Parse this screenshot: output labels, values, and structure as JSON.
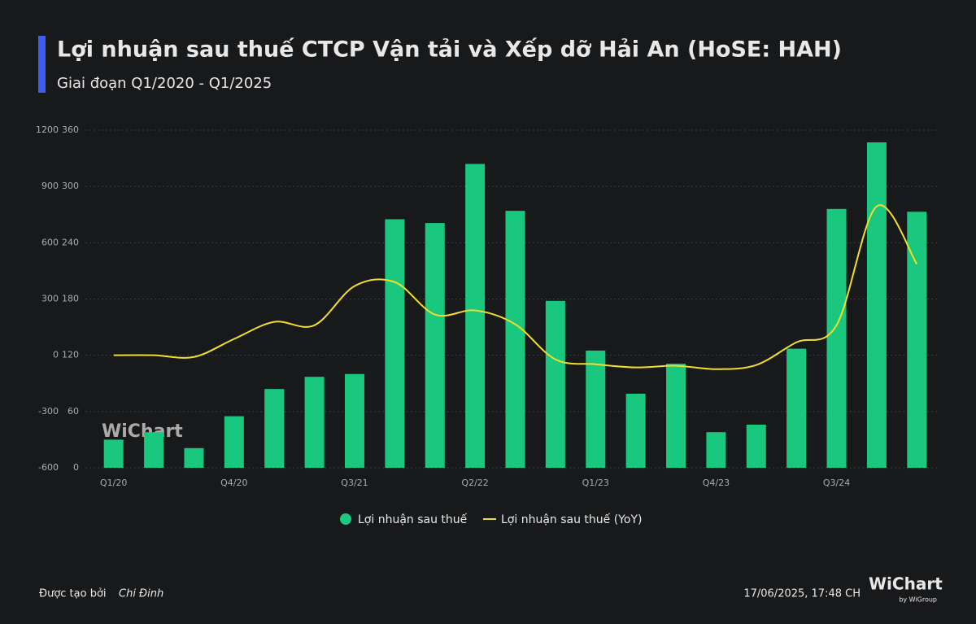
{
  "chart_data": {
    "type": "bar-line",
    "title": "Lợi nhuận sau thuế CTCP Vận tải và Xếp dỡ Hải An (HoSE: HAH)",
    "subtitle": "Giai đoạn Q1/2020 - Q1/2025",
    "watermark": "WiChart",
    "categories": [
      "Q1/20",
      null,
      null,
      "Q4/20",
      null,
      null,
      "Q3/21",
      null,
      null,
      "Q2/22",
      null,
      null,
      "Q1/23",
      null,
      null,
      "Q4/23",
      null,
      null,
      "Q3/24",
      null,
      null
    ],
    "series": [
      {
        "name": "Lợi nhuận sau thuế",
        "type": "bar",
        "color": "#19c77f",
        "axis": "y2",
        "values": [
          30,
          38,
          21,
          55,
          84,
          97,
          100,
          265,
          261,
          324,
          274,
          178,
          125,
          79,
          111,
          38,
          46,
          127,
          276,
          347,
          273
        ]
      },
      {
        "name": "Lợi nhuận sau thuế (YoY)",
        "type": "line",
        "color": "#f2de2a",
        "axis": "y",
        "values": [
          0,
          0,
          -9,
          87,
          178,
          160,
          369,
          390,
          217,
          239,
          165,
          -22,
          -48,
          -65,
          -56,
          -74,
          -52,
          69,
          160,
          794,
          486
        ]
      }
    ],
    "ylim": [
      -600,
      1200
    ],
    "yticks": [
      -600,
      -300,
      0,
      300,
      600,
      900,
      1200
    ],
    "y2lim": [
      0,
      360
    ],
    "y2ticks": [
      0,
      60,
      120,
      180,
      240,
      300,
      360
    ],
    "grid": true,
    "legend": "bottom"
  },
  "footer": {
    "credit_label": "Được tạo bởi",
    "author": "Chi Đinh",
    "timestamp": "17/06/2025, 17:48 CH",
    "logo": "WiChart",
    "logo_sub": "by WiGroup"
  }
}
